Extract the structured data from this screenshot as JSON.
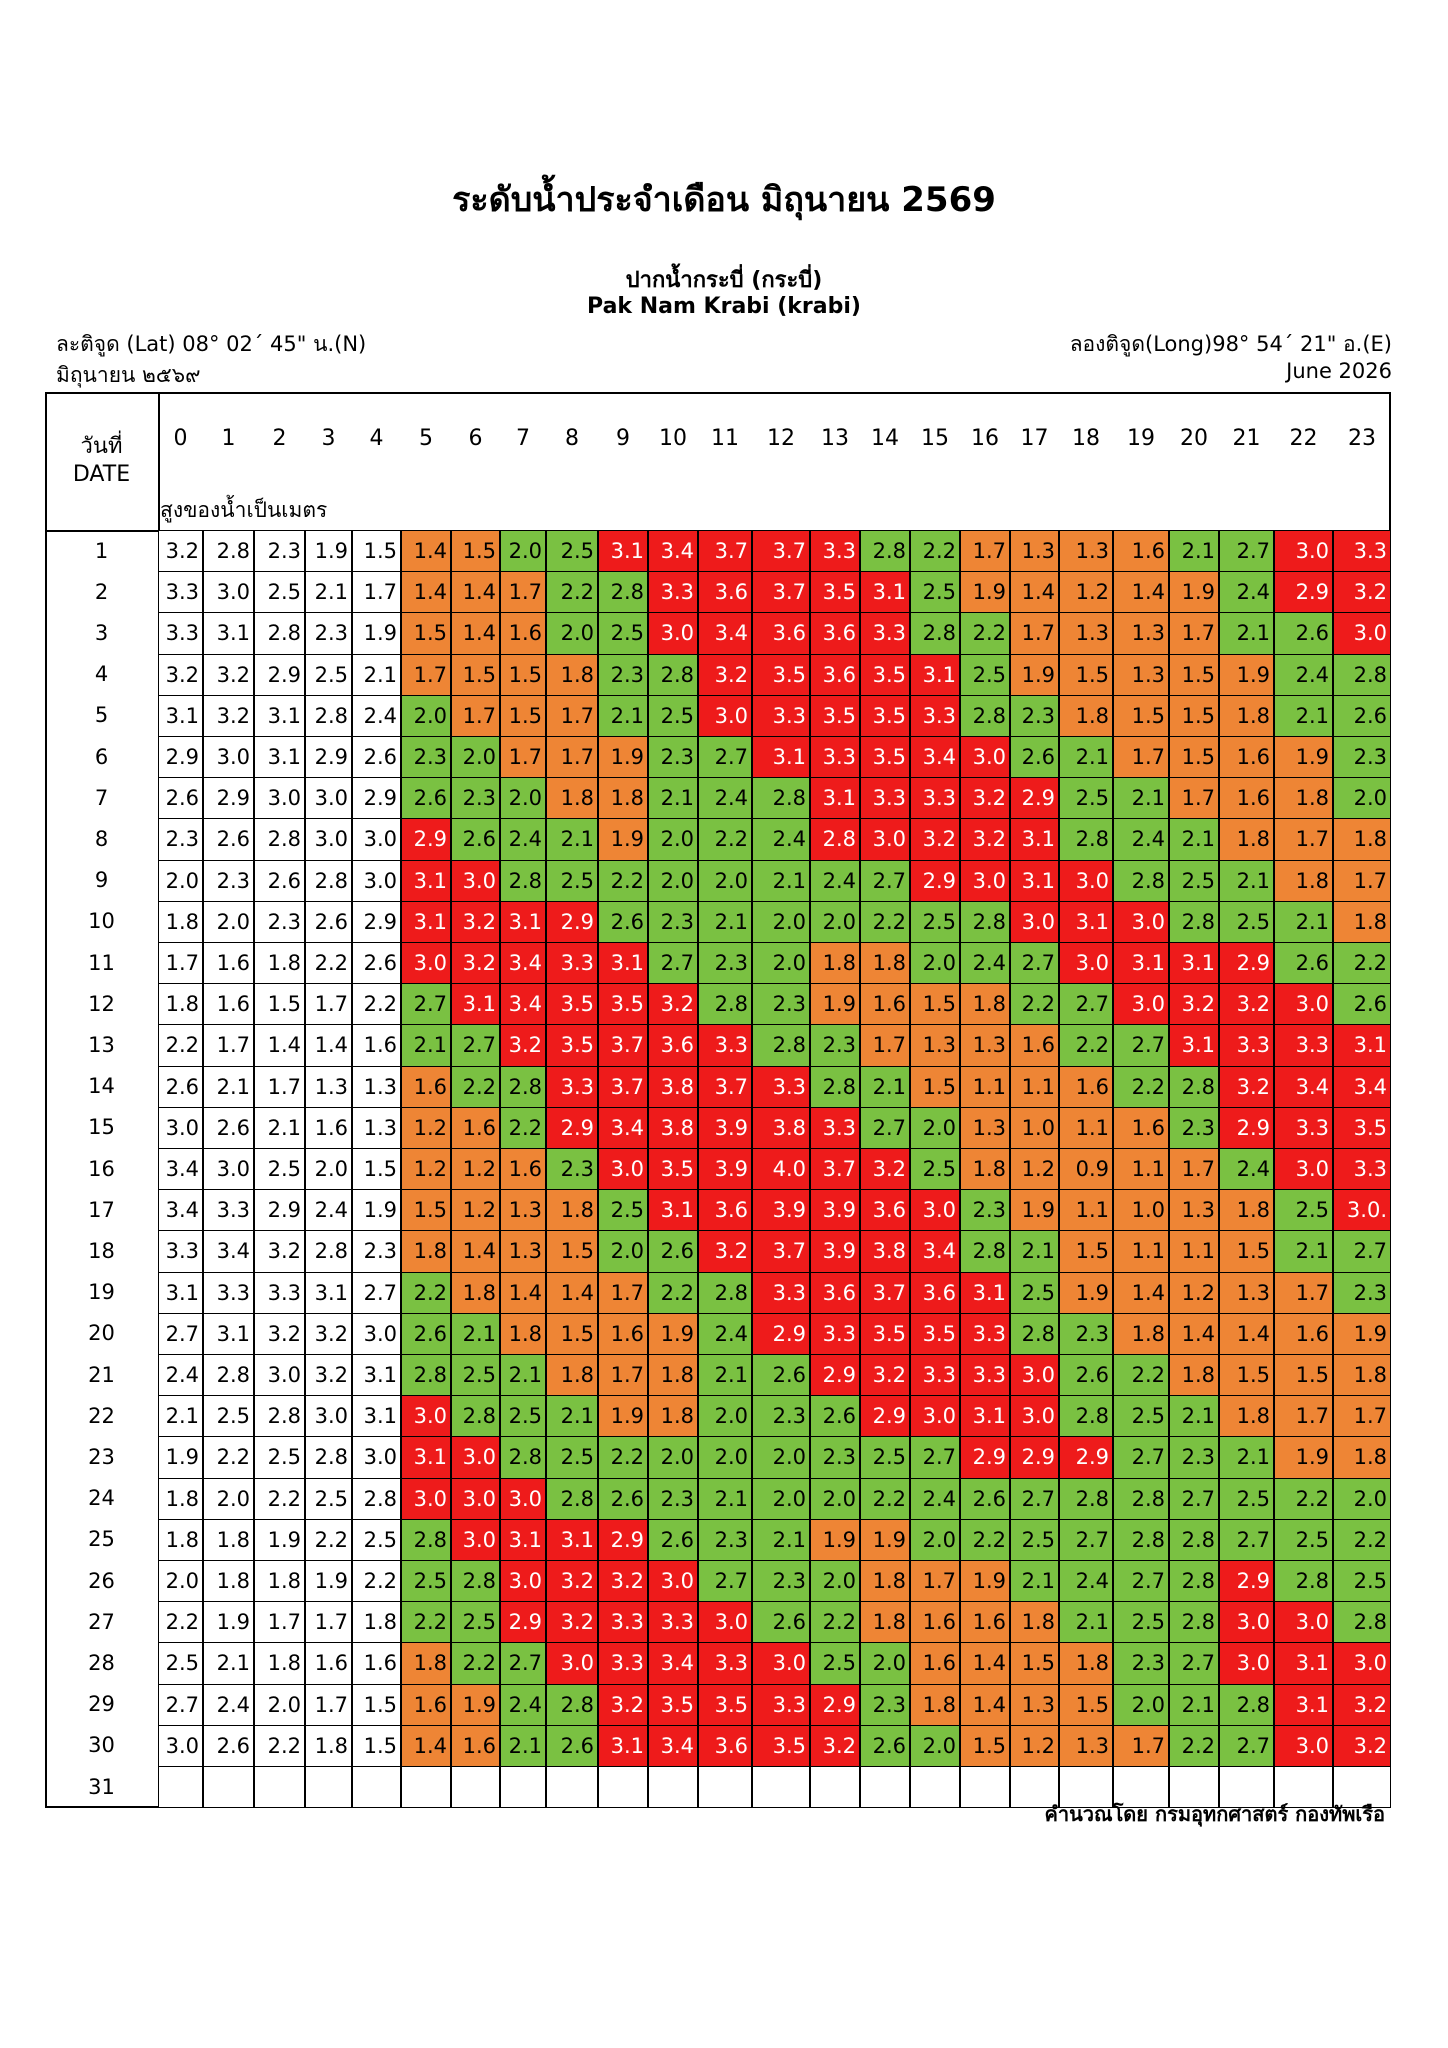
{
  "title": "ระดับน้ำประจำเดือน มิถุนายน 2569",
  "station": {
    "name_th": "ปากน้ำกระบี่ (กระบี่)",
    "name_en": "Pak Nam Krabi (krabi)",
    "lat": "ละติจูด (Lat) 08° 02´ 45\" น.(N)",
    "long": "ลองติจูด(Long)98° 54´ 21\" อ.(E)",
    "month_th": "มิถุนายน ๒๕๖๙",
    "month_en": "June 2026"
  },
  "table": {
    "date_label_th": "วันที่",
    "date_label_en": "DATE",
    "unit_label": "สูงของน้ำเป็นเมตร",
    "hours": [
      "0",
      "1",
      "2",
      "3",
      "4",
      "5",
      "6",
      "7",
      "8",
      "9",
      "10",
      "11",
      "12",
      "13",
      "14",
      "15",
      "16",
      "17",
      "18",
      "19",
      "20",
      "21",
      "22",
      "23"
    ],
    "colors": {
      "low": "#ee8535",
      "mid": "#7ac142",
      "high": "#ee1b1b",
      "none": "#ffffff"
    },
    "rows": [
      {
        "day": "1",
        "values": [
          "3.2",
          "2.8",
          "2.3",
          "1.9",
          "1.5",
          "1.4",
          "1.5",
          "2.0",
          "2.5",
          "3.1",
          "3.4",
          "3.7",
          "3.7",
          "3.3",
          "2.8",
          "2.2",
          "1.7",
          "1.3",
          "1.3",
          "1.6",
          "2.1",
          "2.7",
          "3.0",
          "3.3"
        ]
      },
      {
        "day": "2",
        "values": [
          "3.3",
          "3.0",
          "2.5",
          "2.1",
          "1.7",
          "1.4",
          "1.4",
          "1.7",
          "2.2",
          "2.8",
          "3.3",
          "3.6",
          "3.7",
          "3.5",
          "3.1",
          "2.5",
          "1.9",
          "1.4",
          "1.2",
          "1.4",
          "1.9",
          "2.4",
          "2.9",
          "3.2"
        ]
      },
      {
        "day": "3",
        "values": [
          "3.3",
          "3.1",
          "2.8",
          "2.3",
          "1.9",
          "1.5",
          "1.4",
          "1.6",
          "2.0",
          "2.5",
          "3.0",
          "3.4",
          "3.6",
          "3.6",
          "3.3",
          "2.8",
          "2.2",
          "1.7",
          "1.3",
          "1.3",
          "1.7",
          "2.1",
          "2.6",
          "3.0"
        ]
      },
      {
        "day": "4",
        "values": [
          "3.2",
          "3.2",
          "2.9",
          "2.5",
          "2.1",
          "1.7",
          "1.5",
          "1.5",
          "1.8",
          "2.3",
          "2.8",
          "3.2",
          "3.5",
          "3.6",
          "3.5",
          "3.1",
          "2.5",
          "1.9",
          "1.5",
          "1.3",
          "1.5",
          "1.9",
          "2.4",
          "2.8"
        ]
      },
      {
        "day": "5",
        "values": [
          "3.1",
          "3.2",
          "3.1",
          "2.8",
          "2.4",
          "2.0",
          "1.7",
          "1.5",
          "1.7",
          "2.1",
          "2.5",
          "3.0",
          "3.3",
          "3.5",
          "3.5",
          "3.3",
          "2.8",
          "2.3",
          "1.8",
          "1.5",
          "1.5",
          "1.8",
          "2.1",
          "2.6"
        ]
      },
      {
        "day": "6",
        "values": [
          "2.9",
          "3.0",
          "3.1",
          "2.9",
          "2.6",
          "2.3",
          "2.0",
          "1.7",
          "1.7",
          "1.9",
          "2.3",
          "2.7",
          "3.1",
          "3.3",
          "3.5",
          "3.4",
          "3.0",
          "2.6",
          "2.1",
          "1.7",
          "1.5",
          "1.6",
          "1.9",
          "2.3"
        ]
      },
      {
        "day": "7",
        "values": [
          "2.6",
          "2.9",
          "3.0",
          "3.0",
          "2.9",
          "2.6",
          "2.3",
          "2.0",
          "1.8",
          "1.8",
          "2.1",
          "2.4",
          "2.8",
          "3.1",
          "3.3",
          "3.3",
          "3.2",
          "2.9",
          "2.5",
          "2.1",
          "1.7",
          "1.6",
          "1.8",
          "2.0"
        ]
      },
      {
        "day": "8",
        "values": [
          "2.3",
          "2.6",
          "2.8",
          "3.0",
          "3.0",
          "2.9",
          "2.6",
          "2.4",
          "2.1",
          "1.9",
          "2.0",
          "2.2",
          "2.4",
          "2.8",
          "3.0",
          "3.2",
          "3.2",
          "3.1",
          "2.8",
          "2.4",
          "2.1",
          "1.8",
          "1.7",
          "1.8"
        ]
      },
      {
        "day": "9",
        "values": [
          "2.0",
          "2.3",
          "2.6",
          "2.8",
          "3.0",
          "3.1",
          "3.0",
          "2.8",
          "2.5",
          "2.2",
          "2.0",
          "2.0",
          "2.1",
          "2.4",
          "2.7",
          "2.9",
          "3.0",
          "3.1",
          "3.0",
          "2.8",
          "2.5",
          "2.1",
          "1.8",
          "1.7"
        ]
      },
      {
        "day": "10",
        "values": [
          "1.8",
          "2.0",
          "2.3",
          "2.6",
          "2.9",
          "3.1",
          "3.2",
          "3.1",
          "2.9",
          "2.6",
          "2.3",
          "2.1",
          "2.0",
          "2.0",
          "2.2",
          "2.5",
          "2.8",
          "3.0",
          "3.1",
          "3.0",
          "2.8",
          "2.5",
          "2.1",
          "1.8"
        ]
      },
      {
        "day": "11",
        "values": [
          "1.7",
          "1.6",
          "1.8",
          "2.2",
          "2.6",
          "3.0",
          "3.2",
          "3.4",
          "3.3",
          "3.1",
          "2.7",
          "2.3",
          "2.0",
          "1.8",
          "1.8",
          "2.0",
          "2.4",
          "2.7",
          "3.0",
          "3.1",
          "3.1",
          "2.9",
          "2.6",
          "2.2"
        ]
      },
      {
        "day": "12",
        "values": [
          "1.8",
          "1.6",
          "1.5",
          "1.7",
          "2.2",
          "2.7",
          "3.1",
          "3.4",
          "3.5",
          "3.5",
          "3.2",
          "2.8",
          "2.3",
          "1.9",
          "1.6",
          "1.5",
          "1.8",
          "2.2",
          "2.7",
          "3.0",
          "3.2",
          "3.2",
          "3.0",
          "2.6"
        ]
      },
      {
        "day": "13",
        "values": [
          "2.2",
          "1.7",
          "1.4",
          "1.4",
          "1.6",
          "2.1",
          "2.7",
          "3.2",
          "3.5",
          "3.7",
          "3.6",
          "3.3",
          "2.8",
          "2.3",
          "1.7",
          "1.3",
          "1.3",
          "1.6",
          "2.2",
          "2.7",
          "3.1",
          "3.3",
          "3.3",
          "3.1"
        ]
      },
      {
        "day": "14",
        "values": [
          "2.6",
          "2.1",
          "1.7",
          "1.3",
          "1.3",
          "1.6",
          "2.2",
          "2.8",
          "3.3",
          "3.7",
          "3.8",
          "3.7",
          "3.3",
          "2.8",
          "2.1",
          "1.5",
          "1.1",
          "1.1",
          "1.6",
          "2.2",
          "2.8",
          "3.2",
          "3.4",
          "3.4"
        ]
      },
      {
        "day": "15",
        "values": [
          "3.0",
          "2.6",
          "2.1",
          "1.6",
          "1.3",
          "1.2",
          "1.6",
          "2.2",
          "2.9",
          "3.4",
          "3.8",
          "3.9",
          "3.8",
          "3.3",
          "2.7",
          "2.0",
          "1.3",
          "1.0",
          "1.1",
          "1.6",
          "2.3",
          "2.9",
          "3.3",
          "3.5"
        ]
      },
      {
        "day": "16",
        "values": [
          "3.4",
          "3.0",
          "2.5",
          "2.0",
          "1.5",
          "1.2",
          "1.2",
          "1.6",
          "2.3",
          "3.0",
          "3.5",
          "3.9",
          "4.0",
          "3.7",
          "3.2",
          "2.5",
          "1.8",
          "1.2",
          "0.9",
          "1.1",
          "1.7",
          "2.4",
          "3.0",
          "3.3"
        ]
      },
      {
        "day": "17",
        "values": [
          "3.4",
          "3.3",
          "2.9",
          "2.4",
          "1.9",
          "1.5",
          "1.2",
          "1.3",
          "1.8",
          "2.5",
          "3.1",
          "3.6",
          "3.9",
          "3.9",
          "3.6",
          "3.0",
          "2.3",
          "1.9",
          "1.1",
          "1.0",
          "1.3",
          "1.8",
          "2.5",
          "3.0."
        ]
      },
      {
        "day": "18",
        "values": [
          "3.3",
          "3.4",
          "3.2",
          "2.8",
          "2.3",
          "1.8",
          "1.4",
          "1.3",
          "1.5",
          "2.0",
          "2.6",
          "3.2",
          "3.7",
          "3.9",
          "3.8",
          "3.4",
          "2.8",
          "2.1",
          "1.5",
          "1.1",
          "1.1",
          "1.5",
          "2.1",
          "2.7"
        ]
      },
      {
        "day": "19",
        "values": [
          "3.1",
          "3.3",
          "3.3",
          "3.1",
          "2.7",
          "2.2",
          "1.8",
          "1.4",
          "1.4",
          "1.7",
          "2.2",
          "2.8",
          "3.3",
          "3.6",
          "3.7",
          "3.6",
          "3.1",
          "2.5",
          "1.9",
          "1.4",
          "1.2",
          "1.3",
          "1.7",
          "2.3"
        ]
      },
      {
        "day": "20",
        "values": [
          "2.7",
          "3.1",
          "3.2",
          "3.2",
          "3.0",
          "2.6",
          "2.1",
          "1.8",
          "1.5",
          "1.6",
          "1.9",
          "2.4",
          "2.9",
          "3.3",
          "3.5",
          "3.5",
          "3.3",
          "2.8",
          "2.3",
          "1.8",
          "1.4",
          "1.4",
          "1.6",
          "1.9"
        ]
      },
      {
        "day": "21",
        "values": [
          "2.4",
          "2.8",
          "3.0",
          "3.2",
          "3.1",
          "2.8",
          "2.5",
          "2.1",
          "1.8",
          "1.7",
          "1.8",
          "2.1",
          "2.6",
          "2.9",
          "3.2",
          "3.3",
          "3.3",
          "3.0",
          "2.6",
          "2.2",
          "1.8",
          "1.5",
          "1.5",
          "1.8"
        ]
      },
      {
        "day": "22",
        "values": [
          "2.1",
          "2.5",
          "2.8",
          "3.0",
          "3.1",
          "3.0",
          "2.8",
          "2.5",
          "2.1",
          "1.9",
          "1.8",
          "2.0",
          "2.3",
          "2.6",
          "2.9",
          "3.0",
          "3.1",
          "3.0",
          "2.8",
          "2.5",
          "2.1",
          "1.8",
          "1.7",
          "1.7"
        ]
      },
      {
        "day": "23",
        "values": [
          "1.9",
          "2.2",
          "2.5",
          "2.8",
          "3.0",
          "3.1",
          "3.0",
          "2.8",
          "2.5",
          "2.2",
          "2.0",
          "2.0",
          "2.0",
          "2.3",
          "2.5",
          "2.7",
          "2.9",
          "2.9",
          "2.9",
          "2.7",
          "2.3",
          "2.1",
          "1.9",
          "1.8"
        ]
      },
      {
        "day": "24",
        "values": [
          "1.8",
          "2.0",
          "2.2",
          "2.5",
          "2.8",
          "3.0",
          "3.0",
          "3.0",
          "2.8",
          "2.6",
          "2.3",
          "2.1",
          "2.0",
          "2.0",
          "2.2",
          "2.4",
          "2.6",
          "2.7",
          "2.8",
          "2.8",
          "2.7",
          "2.5",
          "2.2",
          "2.0"
        ]
      },
      {
        "day": "25",
        "values": [
          "1.8",
          "1.8",
          "1.9",
          "2.2",
          "2.5",
          "2.8",
          "3.0",
          "3.1",
          "3.1",
          "2.9",
          "2.6",
          "2.3",
          "2.1",
          "1.9",
          "1.9",
          "2.0",
          "2.2",
          "2.5",
          "2.7",
          "2.8",
          "2.8",
          "2.7",
          "2.5",
          "2.2"
        ]
      },
      {
        "day": "26",
        "values": [
          "2.0",
          "1.8",
          "1.8",
          "1.9",
          "2.2",
          "2.5",
          "2.8",
          "3.0",
          "3.2",
          "3.2",
          "3.0",
          "2.7",
          "2.3",
          "2.0",
          "1.8",
          "1.7",
          "1.9",
          "2.1",
          "2.4",
          "2.7",
          "2.8",
          "2.9",
          "2.8",
          "2.5"
        ]
      },
      {
        "day": "27",
        "values": [
          "2.2",
          "1.9",
          "1.7",
          "1.7",
          "1.8",
          "2.2",
          "2.5",
          "2.9",
          "3.2",
          "3.3",
          "3.3",
          "3.0",
          "2.6",
          "2.2",
          "1.8",
          "1.6",
          "1.6",
          "1.8",
          "2.1",
          "2.5",
          "2.8",
          "3.0",
          "3.0",
          "2.8"
        ]
      },
      {
        "day": "28",
        "values": [
          "2.5",
          "2.1",
          "1.8",
          "1.6",
          "1.6",
          "1.8",
          "2.2",
          "2.7",
          "3.0",
          "3.3",
          "3.4",
          "3.3",
          "3.0",
          "2.5",
          "2.0",
          "1.6",
          "1.4",
          "1.5",
          "1.8",
          "2.3",
          "2.7",
          "3.0",
          "3.1",
          "3.0"
        ]
      },
      {
        "day": "29",
        "values": [
          "2.7",
          "2.4",
          "2.0",
          "1.7",
          "1.5",
          "1.6",
          "1.9",
          "2.4",
          "2.8",
          "3.2",
          "3.5",
          "3.5",
          "3.3",
          "2.9",
          "2.3",
          "1.8",
          "1.4",
          "1.3",
          "1.5",
          "2.0",
          "2.1",
          "2.8",
          "3.1",
          "3.2"
        ]
      },
      {
        "day": "30",
        "values": [
          "3.0",
          "2.6",
          "2.2",
          "1.8",
          "1.5",
          "1.4",
          "1.6",
          "2.1",
          "2.6",
          "3.1",
          "3.4",
          "3.6",
          "3.5",
          "3.2",
          "2.6",
          "2.0",
          "1.5",
          "1.2",
          "1.3",
          "1.7",
          "2.2",
          "2.7",
          "3.0",
          "3.2"
        ]
      },
      {
        "day": "31",
        "values": [
          "",
          "",
          "",
          "",
          "",
          "",
          "",
          "",
          "",
          "",
          "",
          "",
          "",
          "",
          "",
          "",
          "",
          "",
          "",
          "",
          "",
          "",
          "",
          ""
        ]
      }
    ],
    "cell_colors": [
      "WWWWWOOGGRRRRRGGOOOOGGRR",
      "WWWWWOOOGGRRRRRGOOOOOGRR",
      "WWWWWOOOGGRRRRRGGOOOOGGR",
      "WWWWWOOOOGGRRRRRGOOOOOGG",
      "WWWWWGOOOGGRRRRRGGOOOOGG",
      "WWWWWGGOOOGGRRRRRGGOOOOG",
      "WWWWWGGGOOGGGRRRRRGGOOOG",
      "WWWWWRGGGOGGGRRRRRGGGOOO",
      "WWWWWRRGGGGGGGGRRRRGGGOO",
      "WWWWWRRRRGGGGGGGGRRRGGGO",
      "WWWWWRRRRRGGGOOGGGRRRRGG",
      "WWWWWGRRRRRGGOOOOGGRRRRG",
      "WWWWWGGRRRRRGGOOOOGGRRRR",
      "WWWWWOGGRRRRRGGOOOOGGRRR",
      "WWWWWOOGRRRRRRGGOOOOGRRR",
      "WWWWWOOOGRRRRRRGOOOOOGRR",
      "WWWWWOOOOGRRRRRRGOOOOOGR",
      "WWWWWOOOOGGRRRRRGGOOOOGG",
      "WWWWWGOOOOGGRRRRRGOOOOOG",
      "WWWWWGGOOOOGRRRRRGGOOOOO",
      "WWWWWGGGOOOGGRRRRRGGOOOO",
      "WWWWWRGGGOOGGGRRRRGGGOOO",
      "WWWWWRRGGGGGGGGGRRRGGGOO",
      "WWWWWRRRGGGGGGGGGGGGGGGG",
      "WWWWWGRRRRGGGOOGGGGGGGGG",
      "WWWWWGGRRRRGGGOOOGGGGRGG",
      "WWWWWGGRRRRRGGOOOOGGGRRG",
      "WWWWWOGGRRRRRGGOOOOGGRRR",
      "WWWWWOOGGRRRRRGOOOOGGGRR",
      "WWWWWOOGGRRRRRGGOOOOGGRR",
      "WWWWWWWWWWWWWWWWWWWWWWWW"
    ]
  },
  "credit": "คำนวณโดย กรมอุทกศาสตร์ กองทัพเรือ"
}
